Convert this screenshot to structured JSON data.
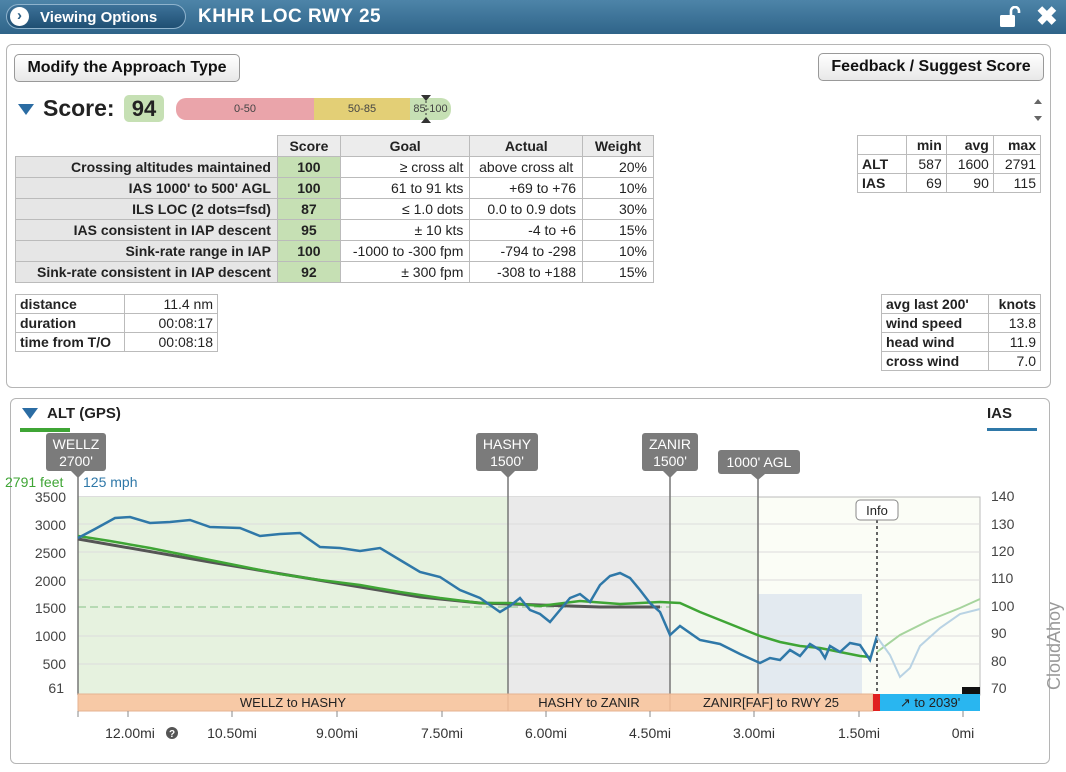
{
  "titlebar": {
    "viewing_label": "Viewing Options",
    "title": "KHHR LOC RWY 25",
    "lock_icon": "unlock-icon",
    "close_label": "✖"
  },
  "buttons": {
    "modify": "Modify the Approach Type",
    "feedback": "Feedback / Suggest Score"
  },
  "score": {
    "label": "Score:",
    "value": "94",
    "scale": [
      {
        "label": "0-50",
        "color": "#e8a3a8"
      },
      {
        "label": "50-85",
        "color": "#e3cf76"
      },
      {
        "label": "85-100",
        "color": "#c6e0b4"
      }
    ]
  },
  "metrics": {
    "headers": [
      "Score",
      "Goal",
      "Actual",
      "Weight"
    ],
    "rows": [
      {
        "name": "Crossing altitudes maintained",
        "score": "100",
        "goal": "≥ cross alt",
        "actual": "above cross alt",
        "weight": "20%"
      },
      {
        "name": "IAS 1000' to 500' AGL",
        "score": "100",
        "goal": "61 to 91 kts",
        "actual": "+69 to +76",
        "weight": "10%"
      },
      {
        "name": "ILS LOC (2 dots=fsd)",
        "score": "87",
        "goal": "≤ 1.0 dots",
        "actual": "0.0 to 0.9 dots",
        "weight": "30%"
      },
      {
        "name": "IAS consistent in IAP descent",
        "score": "95",
        "goal": "± 10 kts",
        "actual": "-4 to +6",
        "weight": "15%"
      },
      {
        "name": "Sink-rate range in IAP",
        "score": "100",
        "goal": "-1000 to -300 fpm",
        "actual": "-794 to -298",
        "weight": "10%"
      },
      {
        "name": "Sink-rate consistent in IAP descent",
        "score": "92",
        "goal": "± 300 fpm",
        "actual": "-308 to +188",
        "weight": "15%"
      }
    ]
  },
  "minmax": {
    "headers": [
      "min",
      "avg",
      "max"
    ],
    "rows": [
      {
        "name": "ALT",
        "min": "587",
        "avg": "1600",
        "max": "2791"
      },
      {
        "name": "IAS",
        "min": "69",
        "avg": "90",
        "max": "115"
      }
    ]
  },
  "flight": {
    "rows": [
      {
        "k": "distance",
        "v": "11.4 nm"
      },
      {
        "k": "duration",
        "v": "00:08:17"
      },
      {
        "k": "time from T/O",
        "v": "00:08:18"
      }
    ]
  },
  "wind": {
    "header_k": "avg last 200'",
    "header_v": "knots",
    "rows": [
      {
        "k": "wind speed",
        "v": "13.8"
      },
      {
        "k": "head wind",
        "v": "11.9"
      },
      {
        "k": "cross wind",
        "v": "7.0"
      }
    ]
  },
  "chart": {
    "left_title": "ALT (GPS)",
    "right_title": "IAS",
    "readout_alt": "2791 feet",
    "readout_ias": "125 mph",
    "info_label": "Info",
    "help_icon": "?",
    "left_ticks": [
      "3500",
      "3000",
      "2500",
      "2000",
      "1500",
      "1000",
      "500",
      "61"
    ],
    "right_ticks": [
      "140",
      "130",
      "120",
      "110",
      "100",
      "90",
      "80",
      "70"
    ],
    "x_ticks": [
      "12.00mi",
      "10.50mi",
      "9.00mi",
      "7.50mi",
      "6.00mi",
      "4.50mi",
      "3.00mi",
      "1.50mi",
      "0mi"
    ],
    "fixes": [
      {
        "name": "WELLZ",
        "alt": "2700'"
      },
      {
        "name": "HASHY",
        "alt": "1500'"
      },
      {
        "name": "ZANIR",
        "alt": "1500'"
      },
      {
        "name": "1000' AGL",
        "alt": ""
      }
    ],
    "segments": [
      "WELLZ to HASHY",
      "HASHY to ZANIR",
      "ZANIR[FAF] to RWY 25",
      "↗ to 2039'"
    ],
    "watermark": "CloudAhoy"
  },
  "colors": {
    "alt_line": "#3fa535",
    "ias_line": "#2f78a8",
    "glidepath": "#555555",
    "score_green": "#c6e0b4"
  }
}
